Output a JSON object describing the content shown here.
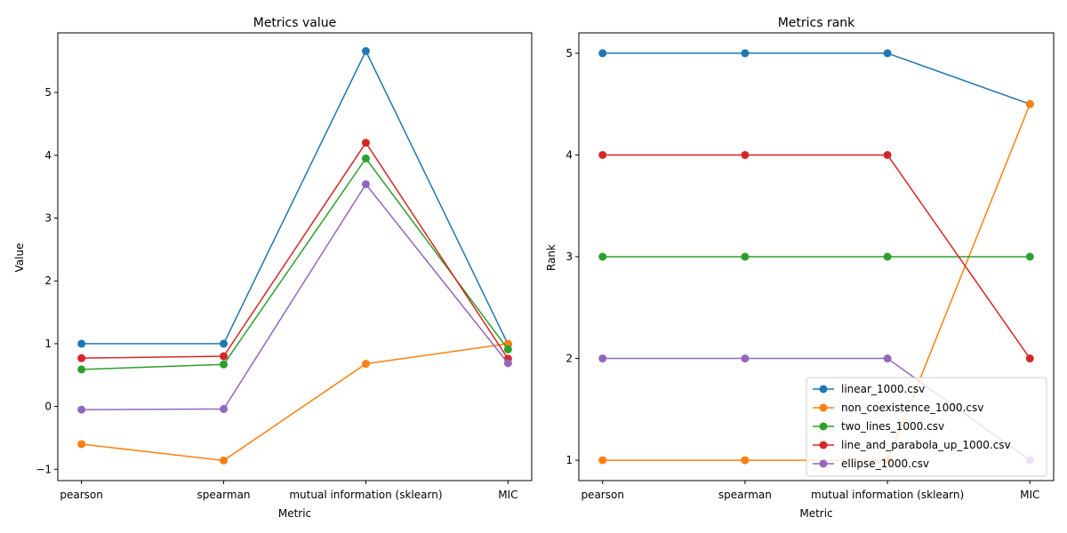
{
  "chart_data": [
    {
      "type": "line",
      "title": "Metrics value",
      "xlabel": "Metric",
      "ylabel": "Value",
      "categories": [
        "pearson",
        "spearman",
        "mutual information (sklearn)",
        "MIC"
      ],
      "ylim": [
        -1.18,
        5.95
      ],
      "yticks": [
        -1,
        0,
        1,
        2,
        3,
        4,
        5
      ],
      "ytick_labels": [
        "−1",
        "0",
        "1",
        "2",
        "3",
        "4",
        "5"
      ],
      "grid": false,
      "legend": null,
      "series": [
        {
          "name": "linear_1000.csv",
          "color": "#1f77b4",
          "values": [
            1.0,
            1.0,
            5.66,
            0.99
          ]
        },
        {
          "name": "non_coexistence_1000.csv",
          "color": "#ff7f0e",
          "values": [
            -0.6,
            -0.86,
            0.68,
            1.0
          ]
        },
        {
          "name": "two_lines_1000.csv",
          "color": "#2ca02c",
          "values": [
            0.59,
            0.67,
            3.95,
            0.91
          ]
        },
        {
          "name": "line_and_parabola_up_1000.csv",
          "color": "#d62728",
          "values": [
            0.77,
            0.8,
            4.2,
            0.76
          ]
        },
        {
          "name": "ellipse_1000.csv",
          "color": "#9467bd",
          "values": [
            -0.05,
            -0.04,
            3.54,
            0.69
          ]
        }
      ]
    },
    {
      "type": "line",
      "title": "Metrics rank",
      "xlabel": "Metric",
      "ylabel": "Rank",
      "categories": [
        "pearson",
        "spearman",
        "mutual information (sklearn)",
        "MIC"
      ],
      "ylim": [
        0.8,
        5.2
      ],
      "yticks": [
        1,
        2,
        3,
        4,
        5
      ],
      "ytick_labels": [
        "1",
        "2",
        "3",
        "4",
        "5"
      ],
      "grid": false,
      "legend": "lower right",
      "series": [
        {
          "name": "linear_1000.csv",
          "color": "#1f77b4",
          "values": [
            5,
            5,
            5,
            4.5
          ]
        },
        {
          "name": "non_coexistence_1000.csv",
          "color": "#ff7f0e",
          "values": [
            1,
            1,
            1,
            4.5
          ]
        },
        {
          "name": "two_lines_1000.csv",
          "color": "#2ca02c",
          "values": [
            3,
            3,
            3,
            3
          ]
        },
        {
          "name": "line_and_parabola_up_1000.csv",
          "color": "#d62728",
          "values": [
            4,
            4,
            4,
            2
          ]
        },
        {
          "name": "ellipse_1000.csv",
          "color": "#9467bd",
          "values": [
            2,
            2,
            2,
            1
          ]
        }
      ]
    }
  ]
}
